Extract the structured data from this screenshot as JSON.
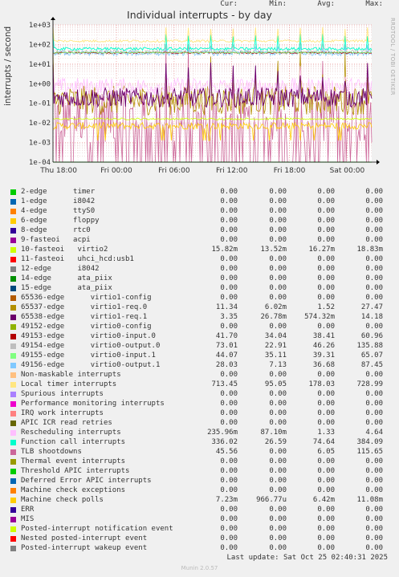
{
  "title": "Individual interrupts - by day",
  "side_text": "RRDTOOL / TOBI OETIKER",
  "footer": {
    "last_update": "Last update: Sat Oct 25 02:40:31 2025",
    "munin": "Munin 2.0.57"
  },
  "headers": {
    "cur": "Cur:",
    "min": "Min:",
    "avg": "Avg:",
    "max": "Max:"
  },
  "chart_data": {
    "type": "line",
    "title": "Individual interrupts - by day",
    "ylabel": "interrupts / second",
    "yscale": "log",
    "ylim": [
      0.0001,
      1000
    ],
    "yticks": [
      "1e-04",
      "1e-03",
      "1e-02",
      "1e-01",
      "1e+00",
      "1e+01",
      "1e+02",
      "1e+03"
    ],
    "xticks": [
      "Thu 18:00",
      "Fri 00:00",
      "Fri 06:00",
      "Fri 12:00",
      "Fri 18:00",
      "Sat 00:00"
    ],
    "grid": true,
    "legend_placement": "bottom",
    "series": [
      {
        "name": "2-edge      timer",
        "color": "#00cc00",
        "cur": "0.00",
        "min": "0.00",
        "avg": "0.00",
        "max": "0.00"
      },
      {
        "name": "1-edge      i8042",
        "color": "#0066b3",
        "cur": "0.00",
        "min": "0.00",
        "avg": "0.00",
        "max": "0.00"
      },
      {
        "name": "4-edge      ttyS0",
        "color": "#ff8000",
        "cur": "0.00",
        "min": "0.00",
        "avg": "0.00",
        "max": "0.00"
      },
      {
        "name": "6-edge      floppy",
        "color": "#ffcc00",
        "cur": "0.00",
        "min": "0.00",
        "avg": "0.00",
        "max": "0.00"
      },
      {
        "name": "8-edge      rtc0",
        "color": "#330099",
        "cur": "0.00",
        "min": "0.00",
        "avg": "0.00",
        "max": "0.00"
      },
      {
        "name": "9-fasteoi   acpi",
        "color": "#990099",
        "cur": "0.00",
        "min": "0.00",
        "avg": "0.00",
        "max": "0.00"
      },
      {
        "name": "10-fasteoi   virtio2",
        "color": "#ccff00",
        "cur": "15.82m",
        "min": "13.52m",
        "avg": "16.27m",
        "max": "18.83m"
      },
      {
        "name": "11-fasteoi   uhci_hcd:usb1",
        "color": "#ff0000",
        "cur": "0.00",
        "min": "0.00",
        "avg": "0.00",
        "max": "0.00"
      },
      {
        "name": "12-edge      i8042",
        "color": "#808080",
        "cur": "0.00",
        "min": "0.00",
        "avg": "0.00",
        "max": "0.00"
      },
      {
        "name": "14-edge      ata_piix",
        "color": "#008f00",
        "cur": "0.00",
        "min": "0.00",
        "avg": "0.00",
        "max": "0.00"
      },
      {
        "name": "15-edge      ata_piix",
        "color": "#00487d",
        "cur": "0.00",
        "min": "0.00",
        "avg": "0.00",
        "max": "0.00"
      },
      {
        "name": "65536-edge      virtio1-config",
        "color": "#b35a00",
        "cur": "0.00",
        "min": "0.00",
        "avg": "0.00",
        "max": "0.00"
      },
      {
        "name": "65537-edge      virtio1-req.0",
        "color": "#b38f00",
        "cur": "11.34",
        "min": "6.02m",
        "avg": "1.52",
        "max": "27.47"
      },
      {
        "name": "65538-edge      virtio1-req.1",
        "color": "#6b006b",
        "cur": "3.35",
        "min": "26.78m",
        "avg": "574.32m",
        "max": "14.18"
      },
      {
        "name": "49152-edge      virtio0-config",
        "color": "#8fb300",
        "cur": "0.00",
        "min": "0.00",
        "avg": "0.00",
        "max": "0.00"
      },
      {
        "name": "49153-edge      virtio0-input.0",
        "color": "#b30000",
        "cur": "41.70",
        "min": "34.04",
        "avg": "38.41",
        "max": "60.96"
      },
      {
        "name": "49154-edge      virtio0-output.0",
        "color": "#bebebe",
        "cur": "73.01",
        "min": "22.91",
        "avg": "46.26",
        "max": "135.88"
      },
      {
        "name": "49155-edge      virtio0-input.1",
        "color": "#80ff80",
        "cur": "44.07",
        "min": "35.11",
        "avg": "39.31",
        "max": "65.07"
      },
      {
        "name": "49156-edge      virtio0-output.1",
        "color": "#80c9ff",
        "cur": "28.03",
        "min": "7.13",
        "avg": "36.68",
        "max": "87.45"
      },
      {
        "name": "Non-maskable interrupts",
        "color": "#ffc080",
        "cur": "0.00",
        "min": "0.00",
        "avg": "0.00",
        "max": "0.00"
      },
      {
        "name": "Local timer interrupts",
        "color": "#ffe680",
        "cur": "713.45",
        "min": "95.05",
        "avg": "178.03",
        "max": "728.99"
      },
      {
        "name": "Spurious interrupts",
        "color": "#aa80ff",
        "cur": "0.00",
        "min": "0.00",
        "avg": "0.00",
        "max": "0.00"
      },
      {
        "name": "Performance monitoring interrupts",
        "color": "#ee00cc",
        "cur": "0.00",
        "min": "0.00",
        "avg": "0.00",
        "max": "0.00"
      },
      {
        "name": "IRQ work interrupts",
        "color": "#ff8080",
        "cur": "0.00",
        "min": "0.00",
        "avg": "0.00",
        "max": "0.00"
      },
      {
        "name": "APIC ICR read retries",
        "color": "#666600",
        "cur": "0.00",
        "min": "0.00",
        "avg": "0.00",
        "max": "0.00"
      },
      {
        "name": "Rescheduling interrupts",
        "color": "#ffbfff",
        "cur": "235.96m",
        "min": "87.10m",
        "avg": "1.33",
        "max": "4.64"
      },
      {
        "name": "Function call interrupts",
        "color": "#00ffcc",
        "cur": "336.02",
        "min": "26.59",
        "avg": "74.64",
        "max": "384.09"
      },
      {
        "name": "TLB shootdowns",
        "color": "#cc6699",
        "cur": "45.56",
        "min": "0.00",
        "avg": "6.05",
        "max": "115.65"
      },
      {
        "name": "Thermal event interrupts",
        "color": "#999900",
        "cur": "0.00",
        "min": "0.00",
        "avg": "0.00",
        "max": "0.00"
      },
      {
        "name": "Threshold APIC interrupts",
        "color": "#00cc00",
        "cur": "0.00",
        "min": "0.00",
        "avg": "0.00",
        "max": "0.00"
      },
      {
        "name": "Deferred Error APIC interrupts",
        "color": "#0066b3",
        "cur": "0.00",
        "min": "0.00",
        "avg": "0.00",
        "max": "0.00"
      },
      {
        "name": "Machine check exceptions",
        "color": "#ff8000",
        "cur": "0.00",
        "min": "0.00",
        "avg": "0.00",
        "max": "0.00"
      },
      {
        "name": "Machine check polls",
        "color": "#ffcc00",
        "cur": "7.23m",
        "min": "966.77u",
        "avg": "6.42m",
        "max": "11.08m"
      },
      {
        "name": "ERR",
        "color": "#330099",
        "cur": "0.00",
        "min": "0.00",
        "avg": "0.00",
        "max": "0.00"
      },
      {
        "name": "MIS",
        "color": "#990099",
        "cur": "0.00",
        "min": "0.00",
        "avg": "0.00",
        "max": "0.00"
      },
      {
        "name": "Posted-interrupt notification event",
        "color": "#ccff00",
        "cur": "0.00",
        "min": "0.00",
        "avg": "0.00",
        "max": "0.00"
      },
      {
        "name": "Nested posted-interrupt event",
        "color": "#ff0000",
        "cur": "0.00",
        "min": "0.00",
        "avg": "0.00",
        "max": "0.00"
      },
      {
        "name": "Posted-interrupt wakeup event",
        "color": "#808080",
        "cur": "0.00",
        "min": "0.00",
        "avg": "0.00",
        "max": "0.00"
      }
    ]
  }
}
